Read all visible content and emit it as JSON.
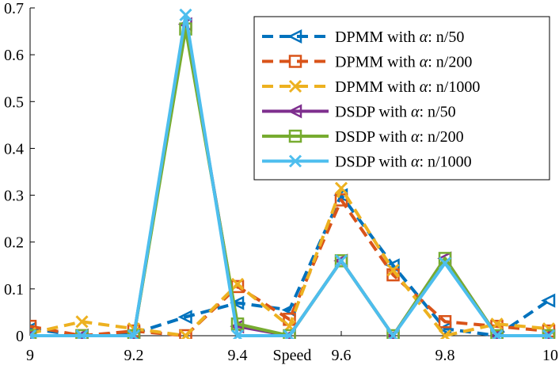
{
  "chart_data": {
    "type": "line",
    "title": "",
    "xlabel": "Speed",
    "ylabel": "",
    "xlim": [
      9,
      10
    ],
    "ylim": [
      0,
      0.7
    ],
    "grid": false,
    "legend_position": "top-right",
    "x": [
      9.0,
      9.1,
      9.2,
      9.3,
      9.4,
      9.5,
      9.6,
      9.7,
      9.8,
      9.9,
      10.0
    ],
    "x_ticks": [
      9,
      9.2,
      9.4,
      9.6,
      9.8,
      10
    ],
    "x_tick_labels": [
      "9",
      "9.2",
      "9.4",
      "9.6",
      "9.8",
      "10"
    ],
    "y_ticks": [
      0,
      0.1,
      0.2,
      0.3,
      0.4,
      0.5,
      0.6,
      0.7
    ],
    "y_tick_labels": [
      "0",
      "0.1",
      "0.2",
      "0.3",
      "0.4",
      "0.5",
      "0.6",
      "0.7"
    ],
    "series": [
      {
        "name": "DPMM with α: n/50",
        "legend_prefix": "DPMM with ",
        "legend_suffix": ": n/50",
        "color": "#0072BD",
        "dash": "dashed",
        "marker": "triangle-left",
        "values": [
          0.015,
          0.0,
          0.005,
          0.04,
          0.07,
          0.055,
          0.3,
          0.15,
          0.015,
          0.0,
          0.075
        ]
      },
      {
        "name": "DPMM with α: n/200",
        "legend_prefix": "DPMM with ",
        "legend_suffix": ": n/200",
        "color": "#D95319",
        "dash": "dashed",
        "marker": "square",
        "values": [
          0.02,
          0.0,
          0.01,
          0.0,
          0.105,
          0.035,
          0.29,
          0.13,
          0.03,
          0.02,
          0.01
        ]
      },
      {
        "name": "DPMM with α: n/1000",
        "legend_prefix": "DPMM with ",
        "legend_suffix": ": n/1000",
        "color": "#EDB120",
        "dash": "dashed",
        "marker": "x",
        "values": [
          0.005,
          0.03,
          0.015,
          0.0,
          0.11,
          0.02,
          0.315,
          0.14,
          0.0,
          0.025,
          0.015
        ]
      },
      {
        "name": "DSDP with α: n/50",
        "legend_prefix": "DSDP with ",
        "legend_suffix": ": n/50",
        "color": "#7E2F8E",
        "dash": "solid",
        "marker": "triangle-left",
        "values": [
          0.0,
          0.0,
          0.0,
          0.665,
          0.02,
          0.0,
          0.16,
          0.0,
          0.165,
          0.0,
          0.0
        ]
      },
      {
        "name": "DSDP with α: n/200",
        "legend_prefix": "DSDP with ",
        "legend_suffix": ": n/200",
        "color": "#77AC30",
        "dash": "solid",
        "marker": "square",
        "values": [
          0.0,
          0.0,
          0.0,
          0.655,
          0.025,
          0.0,
          0.16,
          0.0,
          0.165,
          0.0,
          0.0
        ]
      },
      {
        "name": "DSDP with α: n/1000",
        "legend_prefix": "DSDP with ",
        "legend_suffix": ": n/1000",
        "color": "#4DBEEE",
        "dash": "solid",
        "marker": "x",
        "values": [
          0.0,
          0.0,
          0.0,
          0.685,
          0.0,
          0.0,
          0.16,
          0.0,
          0.155,
          0.0,
          0.0
        ]
      }
    ]
  }
}
